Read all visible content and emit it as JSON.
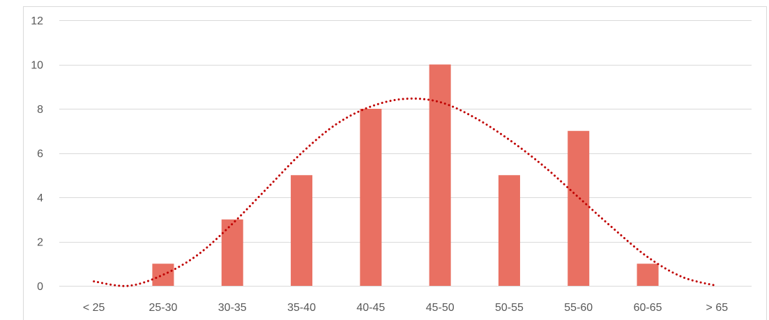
{
  "chart_data": {
    "type": "bar",
    "title": "",
    "xlabel": "",
    "ylabel": "",
    "categories": [
      "< 25",
      "25-30",
      "30-35",
      "35-40",
      "40-45",
      "45-50",
      "50-55",
      "55-60",
      "60-65",
      "> 65"
    ],
    "series": [
      {
        "values": [
          0,
          1,
          3,
          5,
          8,
          10,
          5,
          7,
          1,
          0
        ],
        "color": "#E97062"
      }
    ],
    "trendline": {
      "style": "dotted",
      "color": "#C00000",
      "x": [
        0,
        0.5,
        1,
        1.5,
        2,
        2.5,
        3,
        3.5,
        4,
        4.5,
        5,
        5.5,
        6,
        6.5,
        7,
        7.5,
        8,
        8.5,
        9
      ],
      "y": [
        0.2,
        0.0,
        0.5,
        1.4,
        2.8,
        4.4,
        6.0,
        7.3,
        8.1,
        8.45,
        8.3,
        7.6,
        6.6,
        5.4,
        4.0,
        2.6,
        1.3,
        0.4,
        0.0
      ]
    },
    "ylim": [
      0,
      12
    ],
    "yticks": [
      0,
      2,
      4,
      6,
      8,
      10,
      12
    ],
    "grid": true,
    "legend": "none"
  }
}
